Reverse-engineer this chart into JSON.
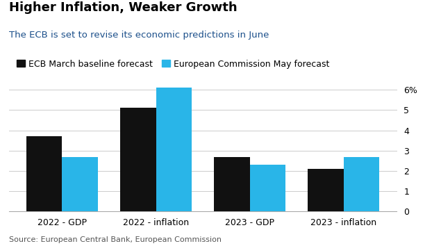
{
  "title": "Higher Inflation, Weaker Growth",
  "subtitle": "The ECB is set to revise its economic predictions in June",
  "source": "Source: European Central Bank, European Commission",
  "categories": [
    "2022 - GDP",
    "2022 - inflation",
    "2023 - GDP",
    "2023 - inflation"
  ],
  "ecb_values": [
    3.7,
    5.1,
    2.7,
    2.1
  ],
  "ec_values": [
    2.7,
    6.1,
    2.3,
    2.7
  ],
  "ecb_color": "#111111",
  "ec_color": "#29B5E8",
  "ecb_label": "ECB March baseline forecast",
  "ec_label": "European Commission May forecast",
  "ylim": [
    0,
    6.3
  ],
  "yticks": [
    0,
    1,
    2,
    3,
    4,
    5,
    6
  ],
  "ytick_labels": [
    "0",
    "1",
    "2",
    "3",
    "4",
    "5",
    "6%"
  ],
  "title_color": "#000000",
  "subtitle_color": "#1B4F8A",
  "source_color": "#555555",
  "background_color": "#FFFFFF",
  "bar_width": 0.38,
  "title_fontsize": 13,
  "subtitle_fontsize": 9.5,
  "source_fontsize": 8,
  "legend_fontsize": 9,
  "tick_fontsize": 9,
  "grid_color": "#CCCCCC"
}
